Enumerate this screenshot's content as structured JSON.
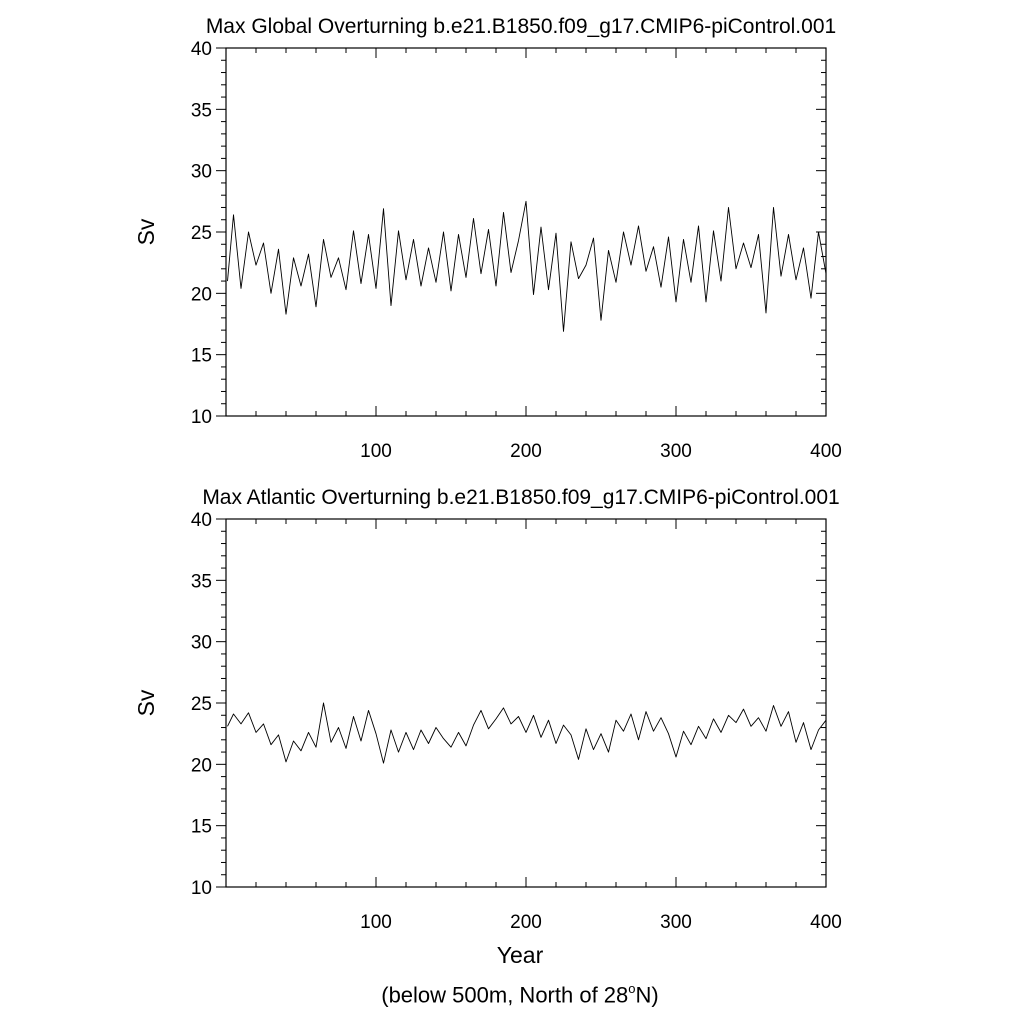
{
  "chart_data": [
    {
      "type": "line",
      "title": "Max Global Overturning b.e21.B1850.f09_g17.CMIP6-piControl.001",
      "xlabel": "",
      "ylabel": "Sv",
      "xlim": [
        0,
        400
      ],
      "ylim": [
        10,
        40
      ],
      "xticks": [
        100,
        200,
        300,
        400
      ],
      "yticks": [
        10,
        15,
        20,
        25,
        30,
        35,
        40
      ],
      "grid": false,
      "line_color": "#000000",
      "series": [
        {
          "x": [
            1,
            5,
            10,
            15,
            20,
            25,
            30,
            35,
            40,
            45,
            50,
            55,
            60,
            65,
            70,
            75,
            80,
            85,
            90,
            95,
            100,
            105,
            110,
            115,
            120,
            125,
            130,
            135,
            140,
            145,
            150,
            155,
            160,
            165,
            170,
            175,
            180,
            185,
            190,
            195,
            200,
            205,
            210,
            215,
            220,
            225,
            230,
            235,
            240,
            245,
            250,
            255,
            260,
            265,
            270,
            275,
            280,
            285,
            290,
            295,
            300,
            305,
            310,
            315,
            320,
            325,
            330,
            335,
            340,
            345,
            350,
            355,
            360,
            365,
            370,
            375,
            380,
            385,
            390,
            395,
            400
          ],
          "values": [
            21.0,
            26.4,
            20.4,
            25.0,
            22.3,
            24.1,
            20.0,
            23.6,
            18.3,
            22.9,
            20.6,
            23.2,
            18.9,
            24.4,
            21.3,
            22.9,
            20.3,
            25.1,
            20.8,
            24.8,
            20.4,
            26.9,
            19.0,
            25.1,
            21.1,
            24.4,
            20.6,
            23.7,
            20.9,
            25.0,
            20.2,
            24.8,
            21.3,
            26.1,
            21.6,
            25.2,
            20.6,
            26.6,
            21.7,
            24.3,
            27.5,
            19.9,
            25.4,
            20.3,
            24.9,
            16.9,
            24.2,
            21.2,
            22.3,
            24.5,
            17.8,
            23.5,
            20.9,
            25.0,
            22.3,
            25.5,
            21.8,
            23.8,
            20.5,
            24.6,
            19.3,
            24.4,
            20.9,
            25.5,
            19.3,
            25.1,
            21.0,
            27.0,
            22.0,
            24.1,
            22.1,
            24.8,
            18.4,
            27.0,
            21.4,
            24.8,
            21.1,
            23.7,
            19.6,
            25.0,
            21.6
          ]
        }
      ]
    },
    {
      "type": "line",
      "title": "Max Atlantic Overturning b.e21.B1850.f09_g17.CMIP6-piControl.001",
      "xlabel": "Year",
      "ylabel": "Sv",
      "xlim": [
        0,
        400
      ],
      "ylim": [
        10,
        40
      ],
      "xticks": [
        100,
        200,
        300,
        400
      ],
      "yticks": [
        10,
        15,
        20,
        25,
        30,
        35,
        40
      ],
      "grid": false,
      "line_color": "#000000",
      "series": [
        {
          "x": [
            1,
            5,
            10,
            15,
            20,
            25,
            30,
            35,
            40,
            45,
            50,
            55,
            60,
            65,
            70,
            75,
            80,
            85,
            90,
            95,
            100,
            105,
            110,
            115,
            120,
            125,
            130,
            135,
            140,
            145,
            150,
            155,
            160,
            165,
            170,
            175,
            180,
            185,
            190,
            195,
            200,
            205,
            210,
            215,
            220,
            225,
            230,
            235,
            240,
            245,
            250,
            255,
            260,
            265,
            270,
            275,
            280,
            285,
            290,
            295,
            300,
            305,
            310,
            315,
            320,
            325,
            330,
            335,
            340,
            345,
            350,
            355,
            360,
            365,
            370,
            375,
            380,
            385,
            390,
            395,
            400
          ],
          "values": [
            23.1,
            24.1,
            23.3,
            24.2,
            22.6,
            23.3,
            21.6,
            22.4,
            20.2,
            21.9,
            21.1,
            22.6,
            21.4,
            25.0,
            21.8,
            23.0,
            21.3,
            23.9,
            21.9,
            24.4,
            22.5,
            20.1,
            22.8,
            21.0,
            22.6,
            21.2,
            22.8,
            21.7,
            23.0,
            22.1,
            21.4,
            22.6,
            21.5,
            23.2,
            24.4,
            22.9,
            23.7,
            24.6,
            23.3,
            23.9,
            22.6,
            24.0,
            22.2,
            23.6,
            21.7,
            23.2,
            22.4,
            20.4,
            22.9,
            21.2,
            22.5,
            21.0,
            23.6,
            22.7,
            24.1,
            22.0,
            24.3,
            22.7,
            23.8,
            22.5,
            20.6,
            22.7,
            21.6,
            23.1,
            22.1,
            23.7,
            22.6,
            24.0,
            23.4,
            24.5,
            23.1,
            23.8,
            22.7,
            24.8,
            23.1,
            24.3,
            21.8,
            23.4,
            21.2,
            22.8,
            23.6
          ]
        }
      ]
    }
  ],
  "footnote": {
    "text_before": "(below 500m, North of 28",
    "superscript": "o",
    "text_after": "N)"
  }
}
